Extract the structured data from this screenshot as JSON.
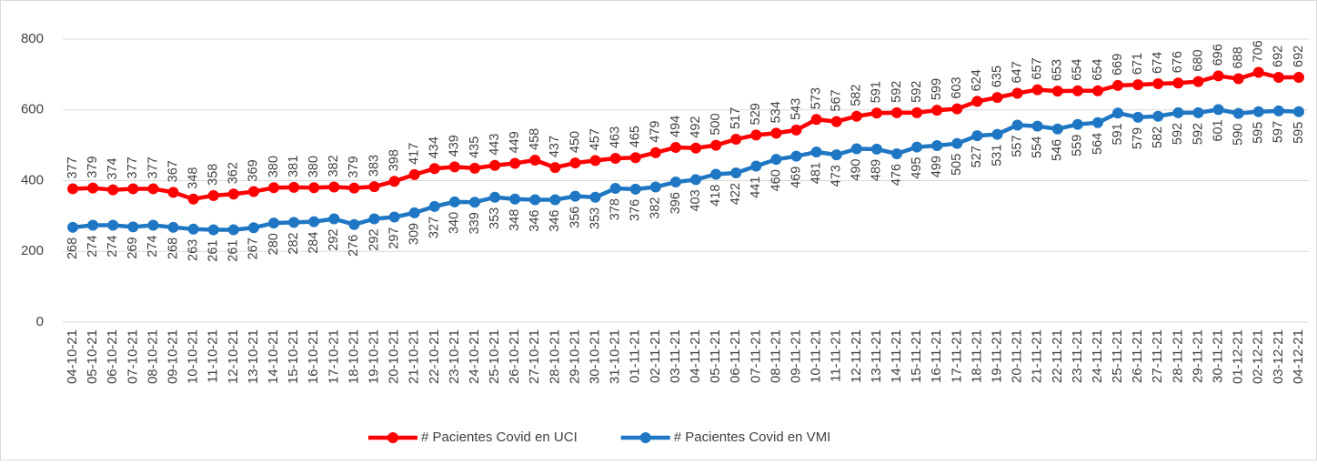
{
  "chart_data": {
    "type": "line",
    "categories": [
      "04-10-21",
      "05-10-21",
      "06-10-21",
      "07-10-21",
      "08-10-21",
      "09-10-21",
      "10-10-21",
      "11-10-21",
      "12-10-21",
      "13-10-21",
      "14-10-21",
      "15-10-21",
      "16-10-21",
      "17-10-21",
      "18-10-21",
      "19-10-21",
      "20-10-21",
      "21-10-21",
      "22-10-21",
      "23-10-21",
      "24-10-21",
      "25-10-21",
      "26-10-21",
      "27-10-21",
      "28-10-21",
      "29-10-21",
      "30-10-21",
      "31-10-21",
      "01-11-21",
      "02-11-21",
      "03-11-21",
      "04-11-21",
      "05-11-21",
      "06-11-21",
      "07-11-21",
      "08-11-21",
      "09-11-21",
      "10-11-21",
      "11-11-21",
      "12-11-21",
      "13-11-21",
      "14-11-21",
      "15-11-21",
      "16-11-21",
      "17-11-21",
      "18-11-21",
      "19-11-21",
      "20-11-21",
      "21-11-21",
      "22-11-21",
      "23-11-21",
      "24-11-21",
      "25-11-21",
      "26-11-21",
      "27-11-21",
      "28-11-21",
      "29-11-21",
      "30-11-21",
      "01-12-21",
      "02-12-21",
      "03-12-21",
      "04-12-21"
    ],
    "series": [
      {
        "name": "# Pacientes Covid en UCI",
        "color": "#ff0000",
        "label_position": "above",
        "values": [
          377,
          379,
          374,
          377,
          377,
          367,
          348,
          358,
          362,
          369,
          380,
          381,
          380,
          382,
          379,
          383,
          398,
          417,
          434,
          439,
          435,
          443,
          449,
          458,
          437,
          450,
          457,
          463,
          465,
          479,
          494,
          492,
          500,
          517,
          529,
          534,
          543,
          573,
          567,
          582,
          591,
          592,
          592,
          599,
          603,
          624,
          635,
          647,
          657,
          653,
          654,
          654,
          669,
          671,
          674,
          676,
          680,
          696,
          688,
          706,
          692,
          692
        ]
      },
      {
        "name": "# Pacientes Covid en VMI",
        "color": "#1f77c4",
        "label_position": "below",
        "values": [
          268,
          274,
          274,
          269,
          274,
          268,
          263,
          261,
          261,
          267,
          280,
          282,
          284,
          292,
          276,
          292,
          297,
          309,
          327,
          340,
          339,
          353,
          348,
          346,
          346,
          356,
          353,
          378,
          376,
          382,
          396,
          403,
          418,
          422,
          441,
          460,
          469,
          481,
          473,
          490,
          489,
          476,
          495,
          499,
          505,
          527,
          531,
          557,
          554,
          546,
          559,
          564,
          591,
          579,
          582,
          592,
          592,
          601,
          590,
          595,
          597,
          595
        ]
      }
    ],
    "ylim": [
      0,
      800
    ],
    "yticks": [
      0,
      200,
      400,
      600,
      800
    ],
    "grid": true,
    "legend": "bottom"
  }
}
